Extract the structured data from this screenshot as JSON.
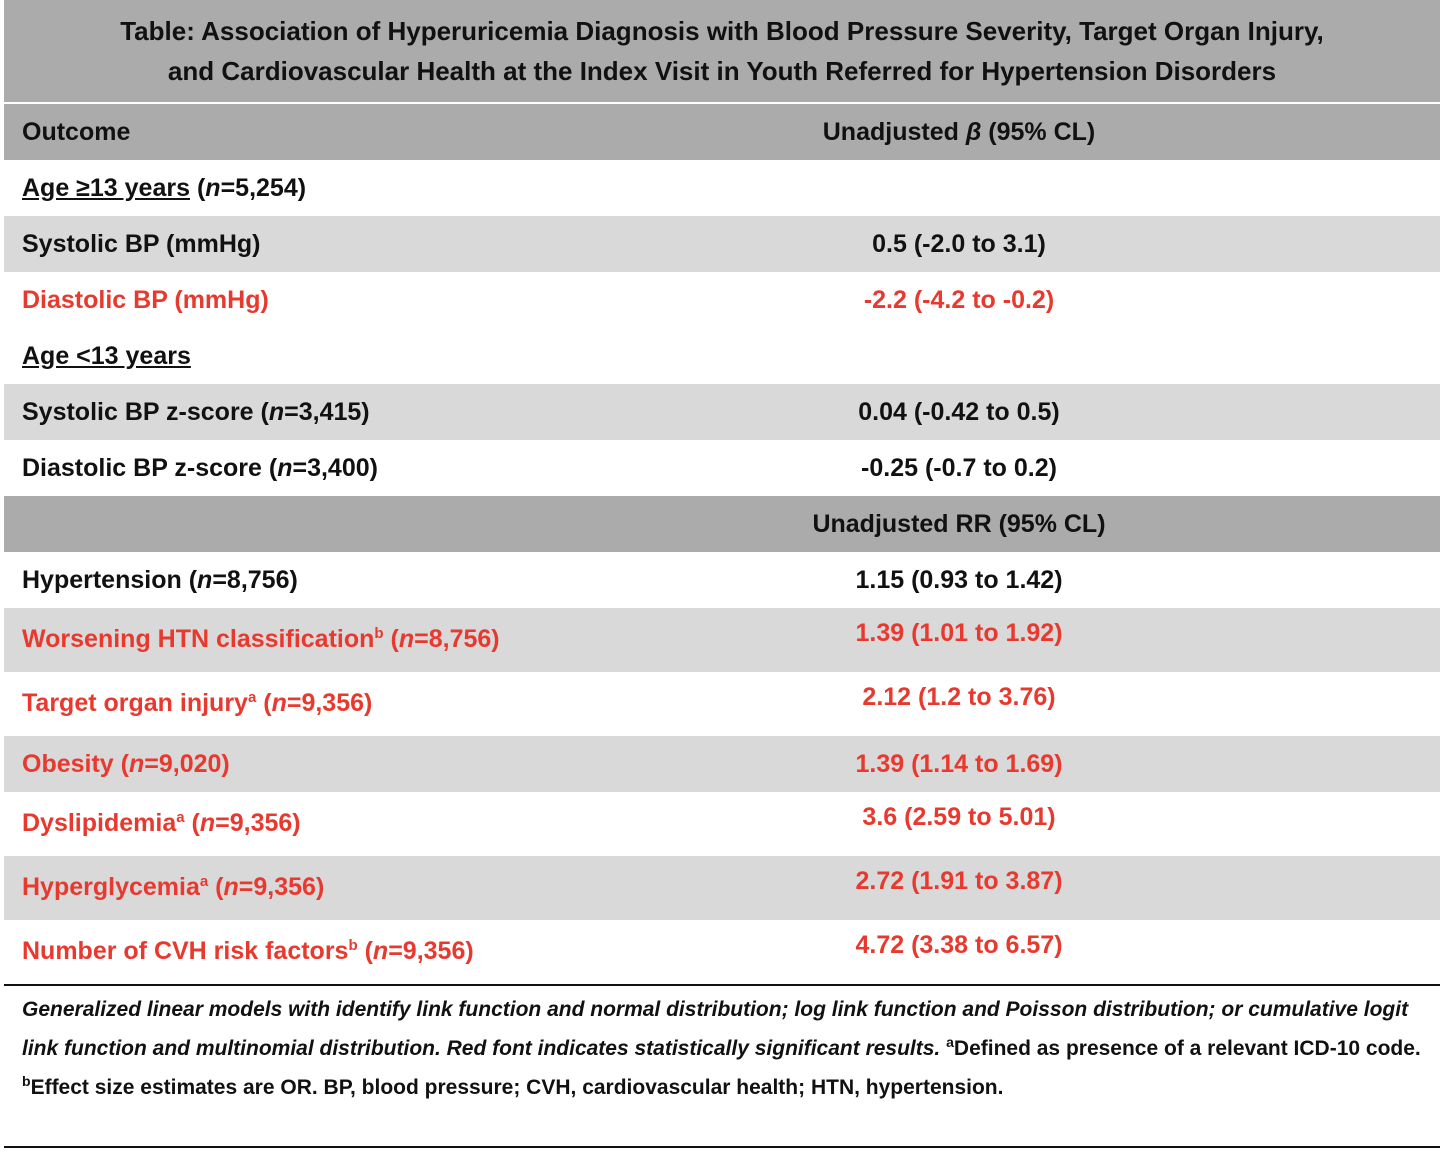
{
  "table": {
    "title": {
      "line1": "Table: Association of Hyperuricemia Diagnosis with Blood Pressure Severity, Target Organ Injury,",
      "line2": "and Cardiovascular Health at the Index Visit in Youth Referred for Hypertension Disorders"
    },
    "header": {
      "outcome": "Outcome",
      "beta_prefix": "Unadjusted ",
      "beta_symbol": "β",
      "beta_suffix": " (95% CL)"
    },
    "section_age13plus": {
      "label": "Age ≥13 years",
      "n_open": " (",
      "n_italic": "n",
      "n_rest": "=5,254)"
    },
    "systolic_bp": {
      "label": "Systolic BP (mmHg)",
      "value": "0.5 (-2.0 to 3.1)"
    },
    "diastolic_bp": {
      "label": "Diastolic BP (mmHg)",
      "value": "-2.2 (-4.2 to -0.2)"
    },
    "section_age_under13": {
      "label": "Age <13 years"
    },
    "systolic_z": {
      "label": "Systolic BP z-score (",
      "n_italic": "n",
      "n_rest": "=3,415)",
      "value": "0.04 (-0.42 to 0.5)"
    },
    "diastolic_z": {
      "label": "Diastolic BP z-score (",
      "n_italic": "n",
      "n_rest": "=3,400)",
      "value": "-0.25 (-0.7 to 0.2)"
    },
    "rr_header": "Unadjusted RR (95% CL)",
    "hypertension": {
      "label": "Hypertension (",
      "n_italic": "n",
      "n_rest": "=8,756)",
      "value": "1.15 (0.93 to 1.42)"
    },
    "worsening_htn": {
      "label": "Worsening HTN classification",
      "sup": "b",
      "n_open": " (",
      "n_italic": "n",
      "n_rest": "=8,756)",
      "value": "1.39 (1.01 to 1.92)"
    },
    "target_organ": {
      "label": "Target organ injury",
      "sup": "a",
      "n_open": " (",
      "n_italic": "n",
      "n_rest": "=9,356)",
      "value": "2.12 (1.2 to 3.76)"
    },
    "obesity": {
      "label": "Obesity (",
      "n_italic": "n",
      "n_rest": "=9,020)",
      "value": "1.39 (1.14 to 1.69)"
    },
    "dyslipidemia": {
      "label": "Dyslipidemia",
      "sup": "a",
      "n_open": " (",
      "n_italic": "n",
      "n_rest": "=9,356)",
      "value": "3.6 (2.59 to 5.01)"
    },
    "hyperglycemia": {
      "label": "Hyperglycemia",
      "sup": "a",
      "n_open": " (",
      "n_italic": "n",
      "n_rest": "=9,356)",
      "value": "2.72 (1.91 to 3.87)"
    },
    "cvh_factors": {
      "label": "Number of CVH risk factors",
      "sup": "b",
      "n_open": " (",
      "n_italic": "n",
      "n_rest": "=9,356)",
      "value": "4.72 (3.38 to 6.57)"
    },
    "footnote": {
      "italic_part": "Generalized linear models with identify link function and normal distribution; log link function and Poisson distribution; or cumulative logit link function and multinomial distribution. Red font indicates statistically significant results. ",
      "sup_a": "a",
      "note_a": "Defined as presence of a relevant ICD-10 code. ",
      "sup_b": "b",
      "note_b": "Effect size estimates are OR. BP, blood pressure; CVH, cardiovascular health; HTN, hypertension."
    },
    "colors": {
      "significant": "#e8392f",
      "header_gray": "#ababab",
      "row_gray": "#d9d9d9"
    }
  }
}
